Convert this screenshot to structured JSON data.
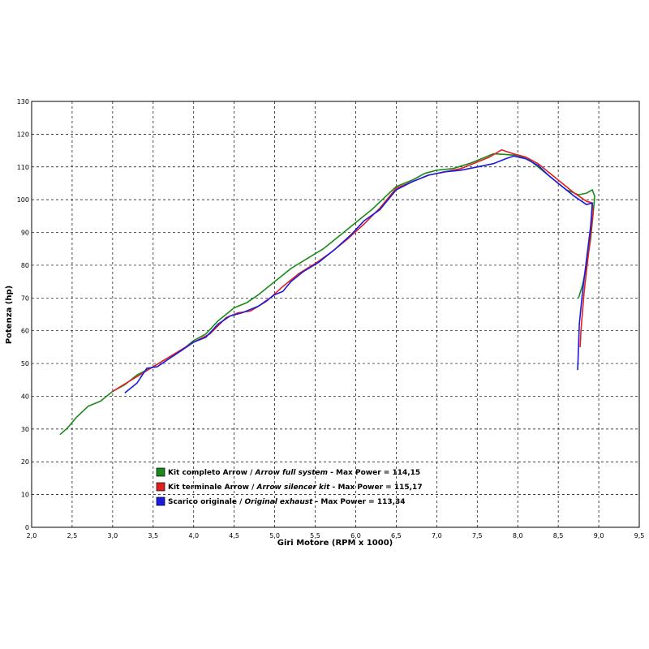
{
  "chart_data": {
    "type": "line",
    "title": "",
    "xlabel": "Giri Motore (RPM x 1000)",
    "ylabel": "Potenza (hp)",
    "xlim": [
      2.0,
      9.5
    ],
    "ylim": [
      0,
      130
    ],
    "x_ticks": [
      "2,0",
      "2,5",
      "3,0",
      "3,5",
      "4,0",
      "4,5",
      "5,0",
      "5,5",
      "6,0",
      "6,5",
      "7,0",
      "7,5",
      "8,0",
      "8,5",
      "9,0",
      "9,5"
    ],
    "y_ticks": [
      "0",
      "10",
      "20",
      "30",
      "40",
      "50",
      "60",
      "70",
      "80",
      "90",
      "100",
      "110",
      "120",
      "130"
    ],
    "grid": true,
    "legend_position": "bottom-left",
    "series": [
      {
        "name": "Kit completo Arrow",
        "name_italic": "Arrow full system",
        "max_label": "Max Power = 114,15",
        "color": "#1a8a1a",
        "points": [
          [
            2.35,
            28.3
          ],
          [
            2.45,
            30.5
          ],
          [
            2.55,
            33.5
          ],
          [
            2.7,
            37
          ],
          [
            2.85,
            38.5
          ],
          [
            3.0,
            41.5
          ],
          [
            3.15,
            43.5
          ],
          [
            3.3,
            46.5
          ],
          [
            3.5,
            49
          ],
          [
            3.7,
            52
          ],
          [
            3.85,
            54
          ],
          [
            4.0,
            57
          ],
          [
            4.15,
            59
          ],
          [
            4.3,
            63
          ],
          [
            4.5,
            67
          ],
          [
            4.65,
            68.5
          ],
          [
            4.8,
            71
          ],
          [
            5.0,
            75
          ],
          [
            5.2,
            79
          ],
          [
            5.4,
            82
          ],
          [
            5.6,
            85
          ],
          [
            5.8,
            89
          ],
          [
            6.0,
            93
          ],
          [
            6.2,
            97
          ],
          [
            6.35,
            100.5
          ],
          [
            6.5,
            104
          ],
          [
            6.7,
            106
          ],
          [
            6.85,
            108
          ],
          [
            7.0,
            109
          ],
          [
            7.2,
            109.5
          ],
          [
            7.4,
            111
          ],
          [
            7.55,
            112.5
          ],
          [
            7.7,
            114
          ],
          [
            7.85,
            113.8
          ],
          [
            8.0,
            113.5
          ],
          [
            8.15,
            112
          ],
          [
            8.3,
            109
          ],
          [
            8.45,
            106
          ],
          [
            8.6,
            103
          ],
          [
            8.75,
            101.5
          ],
          [
            8.85,
            102
          ],
          [
            8.92,
            103
          ],
          [
            8.95,
            101
          ],
          [
            8.9,
            88
          ],
          [
            8.85,
            80
          ],
          [
            8.8,
            74
          ],
          [
            8.75,
            70
          ]
        ]
      },
      {
        "name": "Kit terminale Arrow",
        "name_italic": "Arrow silencer kit",
        "max_label": "Max Power = 115,17",
        "color": "#e02020",
        "points": [
          [
            3.0,
            41.5
          ],
          [
            3.2,
            44.5
          ],
          [
            3.4,
            47.5
          ],
          [
            3.6,
            50.5
          ],
          [
            3.8,
            53.5
          ],
          [
            4.0,
            56.5
          ],
          [
            4.2,
            59
          ],
          [
            4.4,
            64
          ],
          [
            4.55,
            65.5
          ],
          [
            4.7,
            66
          ],
          [
            4.9,
            69
          ],
          [
            5.1,
            73.5
          ],
          [
            5.3,
            77.5
          ],
          [
            5.5,
            80.5
          ],
          [
            5.7,
            84
          ],
          [
            5.9,
            88
          ],
          [
            6.1,
            92.5
          ],
          [
            6.3,
            97.5
          ],
          [
            6.5,
            103.5
          ],
          [
            6.7,
            105.5
          ],
          [
            6.9,
            107.5
          ],
          [
            7.1,
            108.5
          ],
          [
            7.3,
            109.5
          ],
          [
            7.5,
            111.5
          ],
          [
            7.65,
            113
          ],
          [
            7.8,
            115.2
          ],
          [
            7.95,
            114
          ],
          [
            8.1,
            113
          ],
          [
            8.25,
            111
          ],
          [
            8.4,
            108
          ],
          [
            8.55,
            105
          ],
          [
            8.7,
            102
          ],
          [
            8.85,
            99.5
          ],
          [
            8.92,
            99
          ],
          [
            8.93,
            96
          ],
          [
            8.88,
            85
          ],
          [
            8.82,
            72
          ],
          [
            8.78,
            60
          ],
          [
            8.77,
            55
          ]
        ]
      },
      {
        "name": "Scarico originale",
        "name_italic": "Original exhaust",
        "max_label": "Max Power = 113,34",
        "color": "#1a1ae0",
        "points": [
          [
            3.15,
            41
          ],
          [
            3.3,
            44
          ],
          [
            3.42,
            48.5
          ],
          [
            3.55,
            49
          ],
          [
            3.7,
            51.5
          ],
          [
            3.85,
            54
          ],
          [
            4.0,
            56.5
          ],
          [
            4.15,
            58
          ],
          [
            4.3,
            62
          ],
          [
            4.45,
            64.5
          ],
          [
            4.6,
            65.5
          ],
          [
            4.8,
            67.5
          ],
          [
            5.0,
            71
          ],
          [
            5.1,
            72
          ],
          [
            5.2,
            75
          ],
          [
            5.35,
            78
          ],
          [
            5.55,
            81
          ],
          [
            5.75,
            85
          ],
          [
            5.95,
            89.5
          ],
          [
            6.1,
            93.5
          ],
          [
            6.3,
            97
          ],
          [
            6.5,
            103
          ],
          [
            6.7,
            105.5
          ],
          [
            6.9,
            107.5
          ],
          [
            7.1,
            108.5
          ],
          [
            7.3,
            109
          ],
          [
            7.5,
            110
          ],
          [
            7.7,
            111
          ],
          [
            7.85,
            112.5
          ],
          [
            7.95,
            113.3
          ],
          [
            8.1,
            112.5
          ],
          [
            8.25,
            110.5
          ],
          [
            8.4,
            107
          ],
          [
            8.55,
            104
          ],
          [
            8.7,
            101
          ],
          [
            8.85,
            98.5
          ],
          [
            8.92,
            99
          ],
          [
            8.9,
            92
          ],
          [
            8.85,
            82
          ],
          [
            8.8,
            72
          ],
          [
            8.76,
            62
          ],
          [
            8.74,
            48
          ]
        ]
      }
    ]
  }
}
